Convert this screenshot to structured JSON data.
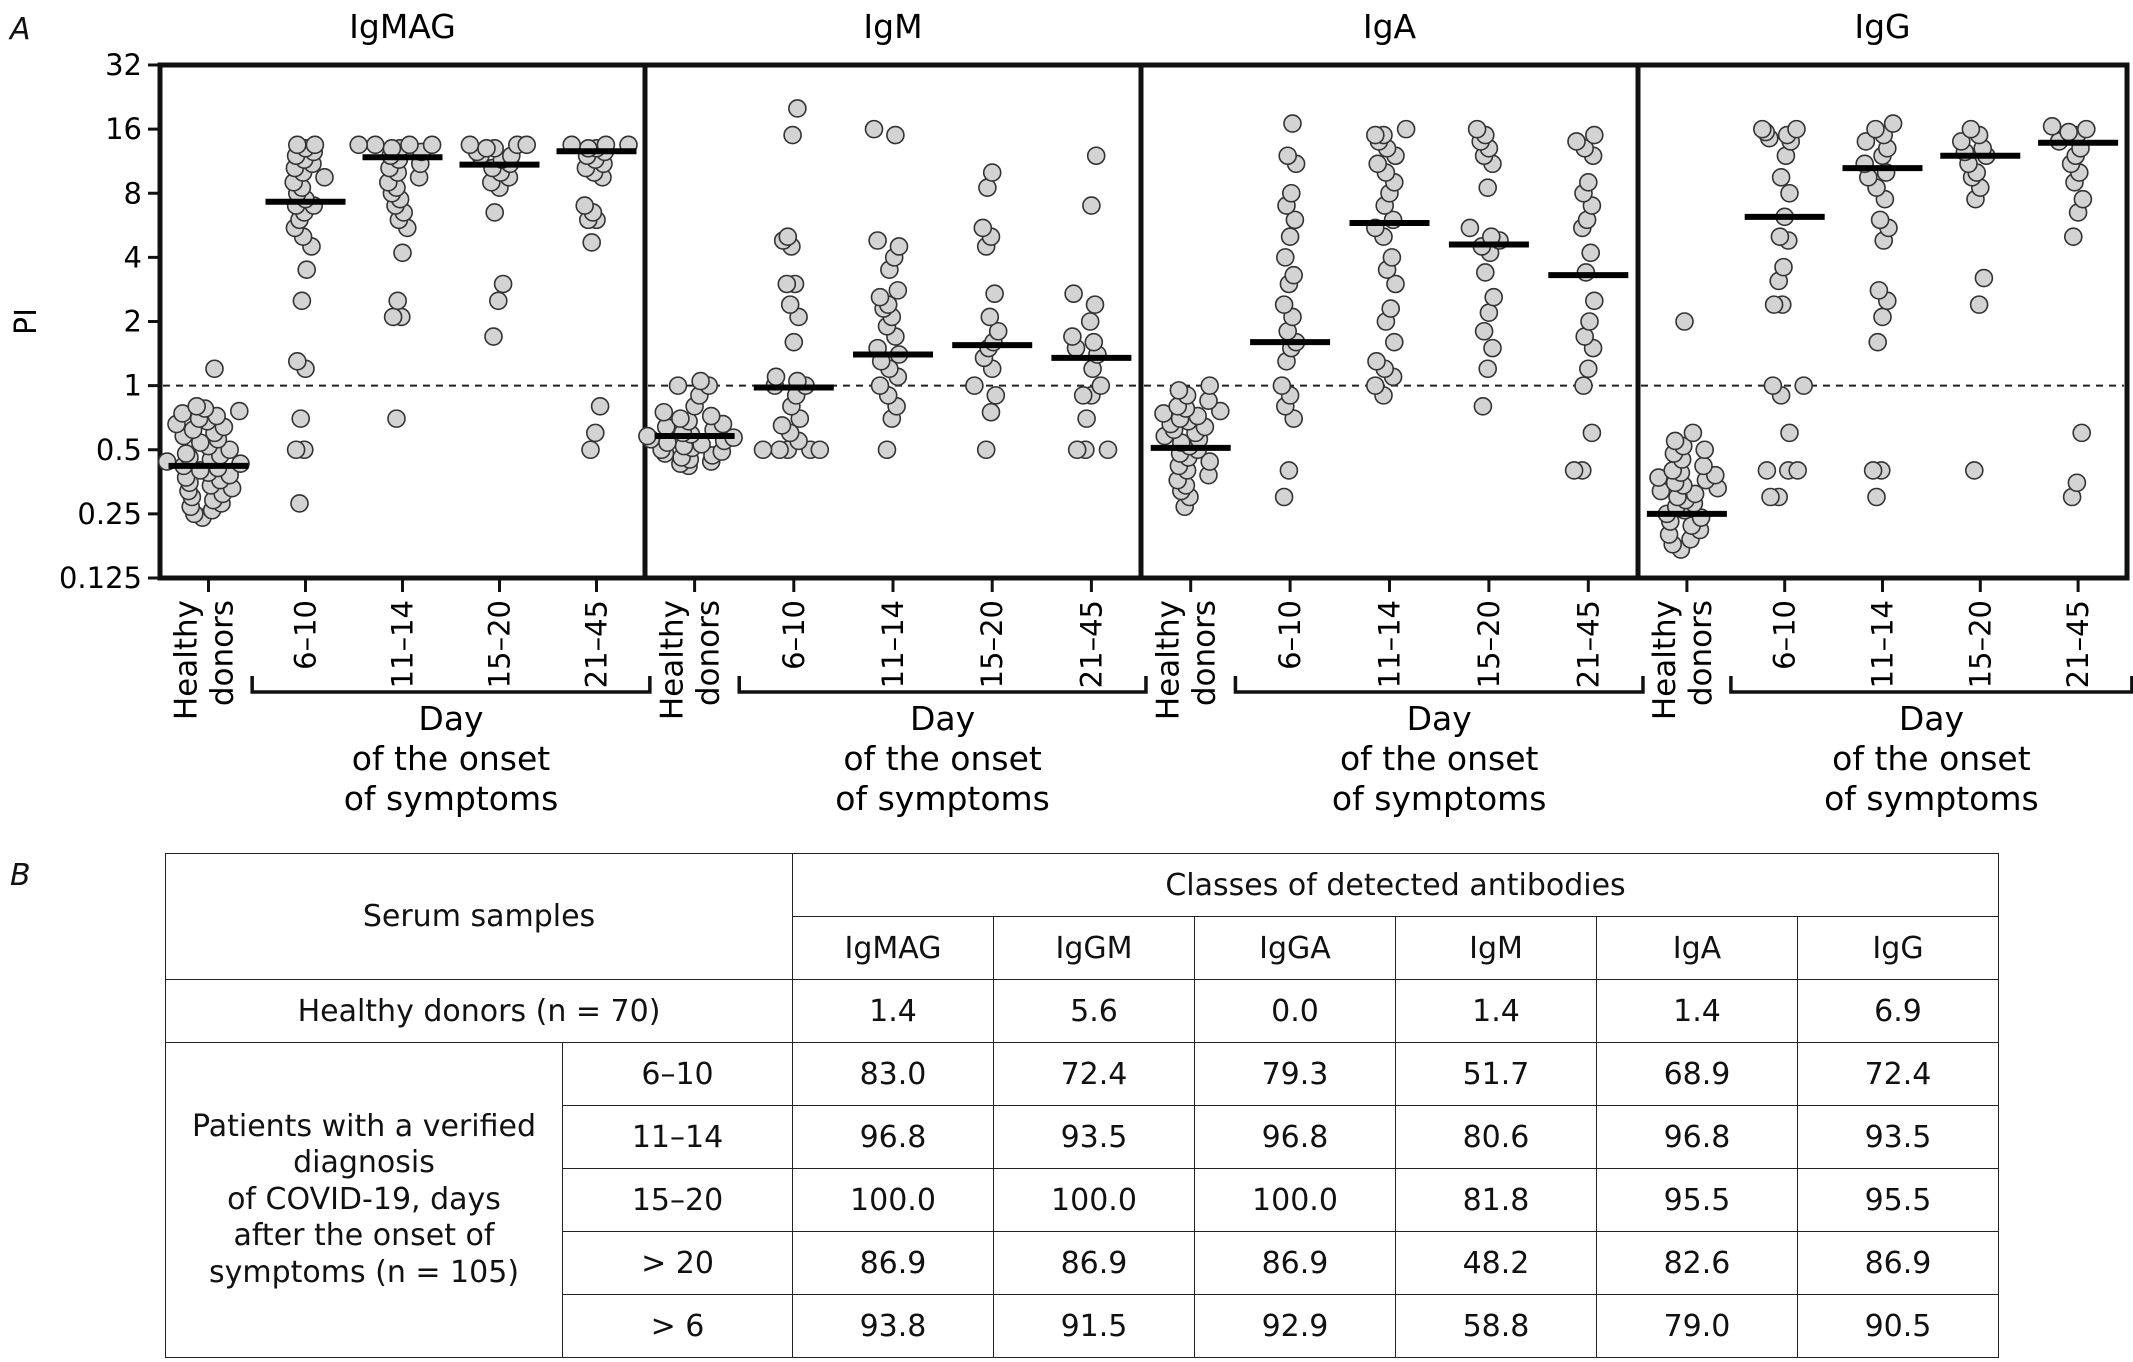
{
  "panel_a_letter": "A",
  "panel_b_letter": "B",
  "x_group": {
    "healthy_line1": "Healthy",
    "healthy_line2": "donors",
    "bracket_line1": "Day",
    "bracket_line2": "of the onset",
    "bracket_line3": "of symptoms"
  },
  "chart_data": [
    {
      "type": "scatter",
      "title": "IgMAG",
      "ylabel": "PI",
      "yscale": "log2",
      "ylim": [
        0.125,
        32
      ],
      "yticks": [
        "32",
        "16",
        "8",
        "4",
        "2",
        "1",
        "0.5",
        "0.25",
        "0.125"
      ],
      "categories": [
        "Healthy donors",
        "6–10",
        "11–14",
        "15–20",
        "21–45"
      ],
      "reference_line": 1,
      "medians": [
        0.42,
        7.3,
        11.8,
        10.9,
        12.6
      ],
      "points": [
        [
          0.24,
          0.25,
          0.26,
          0.27,
          0.28,
          0.29,
          0.3,
          0.31,
          0.32,
          0.33,
          0.34,
          0.35,
          0.36,
          0.37,
          0.38,
          0.39,
          0.4,
          0.41,
          0.42,
          0.43,
          0.44,
          0.45,
          0.46,
          0.47,
          0.48,
          0.5,
          0.52,
          0.54,
          0.56,
          0.58,
          0.6,
          0.62,
          0.64,
          0.66,
          0.68,
          0.7,
          0.72,
          0.74,
          0.76,
          0.78,
          0.8,
          1.2
        ],
        [
          0.28,
          0.5,
          0.5,
          0.7,
          1.2,
          1.3,
          2.5,
          3.5,
          4.5,
          5,
          5.5,
          6,
          6.5,
          7,
          7,
          7.5,
          8,
          8.5,
          9,
          9.5,
          10,
          10.5,
          11,
          11.5,
          12,
          12.5,
          13,
          13.5,
          13.5
        ],
        [
          0.7,
          2.1,
          2.1,
          2.5,
          4.2,
          5.5,
          6,
          6.5,
          7,
          7.5,
          8,
          8.5,
          9,
          9.5,
          10,
          10.5,
          11,
          11.5,
          12,
          12.5,
          13,
          13,
          13.5,
          13.5,
          13.5,
          13.5
        ],
        [
          1.7,
          2.5,
          3,
          6.5,
          8.5,
          9,
          9.5,
          10,
          10.5,
          11,
          11.5,
          12,
          12,
          12.5,
          13,
          13,
          13.5,
          13.5,
          13.5
        ],
        [
          0.5,
          0.6,
          0.8,
          4.7,
          6,
          6,
          6.5,
          7,
          9.5,
          10,
          10.5,
          11,
          11.5,
          12,
          12.5,
          13,
          13,
          13.5,
          13.5,
          13.5
        ]
      ]
    },
    {
      "type": "scatter",
      "title": "IgM",
      "yscale": "log2",
      "ylim": [
        0.125,
        32
      ],
      "categories": [
        "Healthy donors",
        "6–10",
        "11–14",
        "15–20",
        "21–45"
      ],
      "reference_line": 1,
      "medians": [
        0.58,
        0.98,
        1.4,
        1.55,
        1.35
      ],
      "points": [
        [
          0.42,
          0.43,
          0.44,
          0.45,
          0.46,
          0.47,
          0.48,
          0.49,
          0.5,
          0.51,
          0.52,
          0.53,
          0.54,
          0.55,
          0.56,
          0.57,
          0.58,
          0.59,
          0.6,
          0.62,
          0.64,
          0.66,
          0.68,
          0.7,
          0.72,
          0.75,
          0.8,
          0.9,
          1.0,
          1.0,
          1.05
        ],
        [
          0.5,
          0.5,
          0.5,
          0.5,
          0.5,
          0.55,
          0.6,
          0.65,
          0.7,
          0.8,
          0.9,
          1.0,
          1.0,
          1.05,
          1.1,
          1.6,
          2.1,
          2.4,
          3.0,
          3.0,
          4.5,
          4.8,
          5.0,
          15,
          20
        ],
        [
          0.5,
          0.7,
          0.8,
          0.9,
          1.0,
          1.1,
          1.2,
          1.3,
          1.4,
          1.5,
          1.7,
          1.9,
          2.1,
          2.3,
          2.4,
          2.6,
          2.8,
          3.5,
          4.0,
          4.5,
          4.8,
          15,
          16
        ],
        [
          0.5,
          0.75,
          0.9,
          1.0,
          1.2,
          1.35,
          1.5,
          1.6,
          1.8,
          2.1,
          2.7,
          4.5,
          5.0,
          5.5,
          8.5,
          10
        ],
        [
          0.5,
          0.5,
          0.5,
          0.7,
          0.9,
          0.9,
          1.0,
          1.2,
          1.4,
          1.5,
          1.6,
          1.7,
          2.0,
          2.4,
          2.7,
          7.0,
          12
        ]
      ]
    },
    {
      "type": "scatter",
      "title": "IgA",
      "yscale": "log2",
      "ylim": [
        0.125,
        32
      ],
      "categories": [
        "Healthy donors",
        "6–10",
        "11–14",
        "15–20",
        "21–45"
      ],
      "reference_line": 1,
      "medians": [
        0.51,
        1.6,
        5.8,
        4.6,
        3.3
      ],
      "points": [
        [
          0.27,
          0.3,
          0.32,
          0.34,
          0.36,
          0.38,
          0.4,
          0.42,
          0.44,
          0.46,
          0.48,
          0.5,
          0.52,
          0.54,
          0.56,
          0.58,
          0.6,
          0.62,
          0.64,
          0.66,
          0.68,
          0.7,
          0.72,
          0.74,
          0.76,
          0.78,
          0.8,
          0.85,
          0.9,
          0.95,
          1.0
        ],
        [
          0.3,
          0.4,
          0.7,
          0.8,
          0.9,
          1.0,
          1.3,
          1.5,
          1.6,
          1.8,
          2.1,
          2.4,
          3.0,
          3.3,
          4.0,
          5.0,
          6.0,
          7.0,
          8.0,
          11,
          12,
          17
        ],
        [
          0.9,
          1.0,
          1.1,
          1.2,
          1.3,
          1.6,
          2.0,
          2.3,
          3.0,
          3.5,
          4.0,
          5.0,
          5.5,
          6.0,
          7.0,
          8.0,
          9.0,
          10,
          11,
          12,
          13,
          14,
          15,
          15,
          16
        ],
        [
          0.8,
          1.2,
          1.5,
          1.8,
          2.2,
          2.6,
          3.4,
          4.2,
          4.5,
          4.8,
          5.0,
          5.5,
          8.5,
          11,
          12,
          13,
          14,
          15,
          16
        ],
        [
          0.4,
          0.4,
          0.6,
          1.0,
          1.2,
          1.5,
          1.7,
          2.0,
          2.5,
          3.4,
          4.2,
          5.5,
          6.0,
          7.0,
          8.0,
          9.0,
          12,
          13,
          14,
          15
        ]
      ]
    },
    {
      "type": "scatter",
      "title": "IgG",
      "yscale": "log2",
      "ylim": [
        0.125,
        32
      ],
      "categories": [
        "Healthy donors",
        "6–10",
        "11–14",
        "15–20",
        "21–45"
      ],
      "reference_line": 1,
      "medians": [
        0.25,
        6.2,
        10.5,
        12.0,
        13.8
      ],
      "points": [
        [
          0.17,
          0.18,
          0.19,
          0.2,
          0.21,
          0.22,
          0.23,
          0.24,
          0.25,
          0.26,
          0.27,
          0.28,
          0.29,
          0.3,
          0.31,
          0.32,
          0.33,
          0.34,
          0.35,
          0.36,
          0.37,
          0.38,
          0.39,
          0.4,
          0.42,
          0.45,
          0.48,
          0.5,
          0.52,
          0.55,
          0.6,
          2.0
        ],
        [
          0.3,
          0.3,
          0.4,
          0.4,
          0.4,
          0.6,
          0.9,
          1.0,
          1.0,
          2.4,
          2.4,
          3.1,
          3.6,
          4.8,
          5.0,
          6.2,
          8.0,
          9.5,
          12,
          14,
          14.5,
          15,
          15.5,
          16,
          16
        ],
        [
          0.3,
          0.4,
          0.4,
          1.6,
          2.1,
          2.5,
          2.8,
          4.8,
          5.5,
          6.0,
          7.5,
          8.5,
          9.5,
          10,
          11,
          12,
          13,
          14,
          15,
          16,
          17
        ],
        [
          0.4,
          2.4,
          3.2,
          7.5,
          8.5,
          9.5,
          10,
          11,
          12,
          12.5,
          13,
          14,
          15,
          16
        ],
        [
          0.3,
          0.35,
          0.6,
          5.0,
          6.5,
          7.5,
          9,
          10,
          11,
          12,
          13,
          14,
          15,
          15.5,
          16,
          16.5
        ]
      ]
    }
  ],
  "table": {
    "header_samples": "Serum samples",
    "header_classes": "Classes of detected antibodies",
    "columns": [
      "IgMAG",
      "IgGM",
      "IgGA",
      "IgM",
      "IgA",
      "IgG"
    ],
    "healthy_label": "Healthy donors (n = 70)",
    "healthy_values": [
      "1.4",
      "5.6",
      "0.0",
      "1.4",
      "1.4",
      "6.9"
    ],
    "patients_label_lines": [
      "Patients with a verified",
      "diagnosis",
      "of COVID-19, days",
      "after the onset of",
      "symptoms (n = 105)"
    ],
    "rows": [
      {
        "day": "6–10",
        "values": [
          "83.0",
          "72.4",
          "79.3",
          "51.7",
          "68.9",
          "72.4"
        ]
      },
      {
        "day": "11–14",
        "values": [
          "96.8",
          "93.5",
          "96.8",
          "80.6",
          "96.8",
          "93.5"
        ]
      },
      {
        "day": "15–20",
        "values": [
          "100.0",
          "100.0",
          "100.0",
          "81.8",
          "95.5",
          "95.5"
        ]
      },
      {
        "day": "> 20",
        "values": [
          "86.9",
          "86.9",
          "86.9",
          "48.2",
          "82.6",
          "86.9"
        ]
      },
      {
        "day": "> 6",
        "values": [
          "93.8",
          "91.5",
          "92.9",
          "58.8",
          "79.0",
          "90.5"
        ]
      }
    ]
  }
}
